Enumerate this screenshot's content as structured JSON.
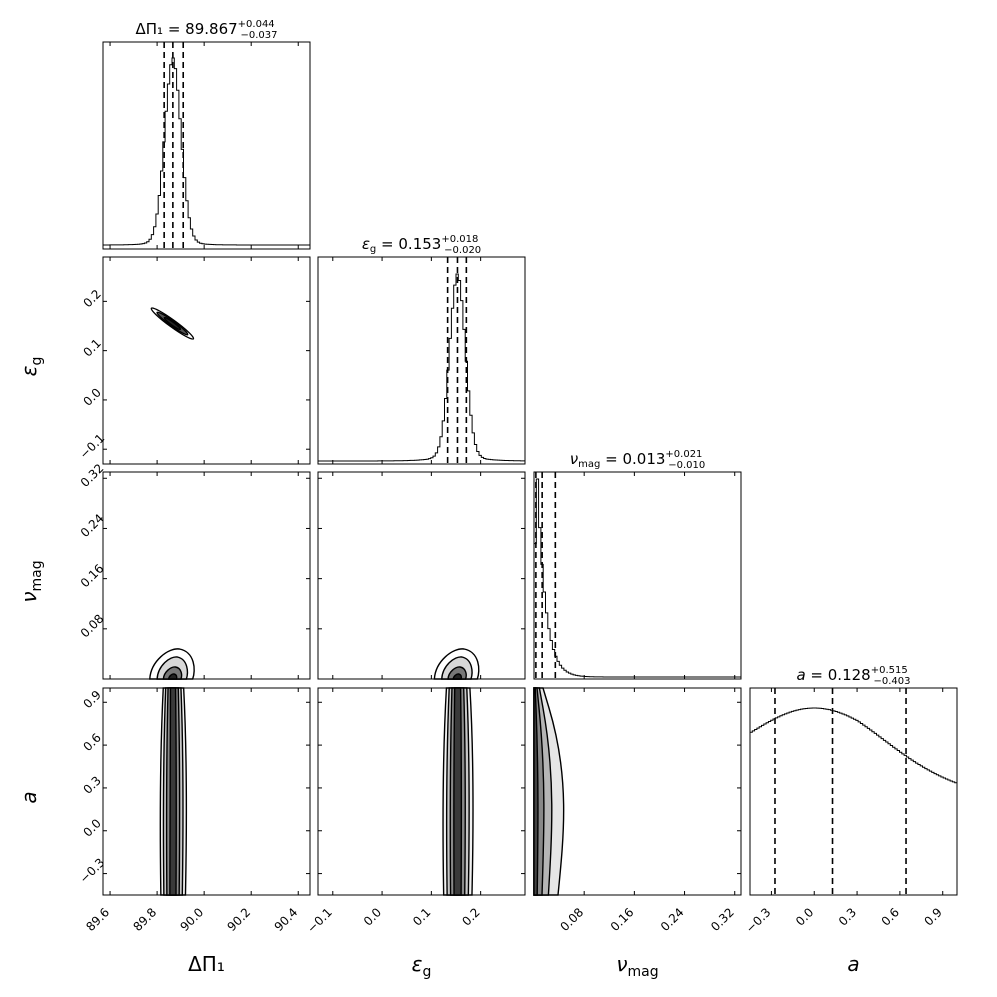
{
  "chart_data": {
    "type": "corner",
    "parameters": [
      {
        "key": "dpi",
        "axis_label": "ΔΠ₁",
        "title": "ΔΠ₁ = 89.867",
        "median": 89.867,
        "err_plus": "+0.044",
        "err_minus": "−0.037",
        "range": [
          89.57,
          90.45
        ],
        "ticks": [
          "89.6",
          "89.8",
          "90.0",
          "90.2",
          "90.4"
        ],
        "quantiles": [
          89.83,
          89.867,
          89.911
        ]
      },
      {
        "key": "eps",
        "axis_label": "ε_g",
        "title": "ε_g = 0.153",
        "median": 0.153,
        "err_plus": "+0.018",
        "err_minus": "−0.020",
        "range": [
          -0.13,
          0.29
        ],
        "ticks": [
          "−0.1",
          "0.0",
          "0.1",
          "0.2"
        ],
        "quantiles": [
          0.133,
          0.153,
          0.171
        ]
      },
      {
        "key": "nu",
        "axis_label": "ν_mag",
        "title": "ν_mag = 0.013",
        "median": 0.013,
        "err_plus": "+0.021",
        "err_minus": "−0.010",
        "range": [
          0.0,
          0.33
        ],
        "ticks": [
          "0.08",
          "0.16",
          "0.24",
          "0.32"
        ],
        "quantiles": [
          0.003,
          0.013,
          0.034
        ]
      },
      {
        "key": "a",
        "axis_label": "a",
        "title": "a = 0.128",
        "median": 0.128,
        "err_plus": "+0.515",
        "err_minus": "−0.403",
        "range": [
          -0.45,
          1.0
        ],
        "ticks": [
          "−0.3",
          "0.0",
          "0.3",
          "0.6",
          "0.9"
        ],
        "quantiles": [
          -0.275,
          0.128,
          0.643
        ]
      }
    ]
  }
}
